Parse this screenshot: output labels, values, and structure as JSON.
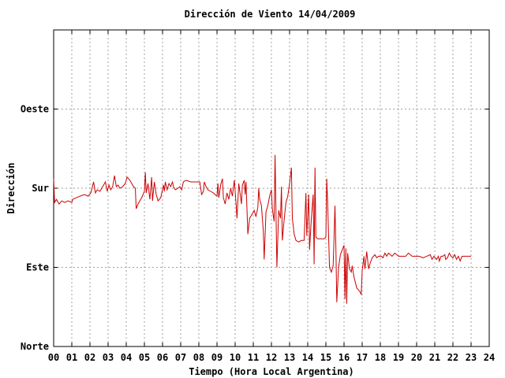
{
  "chart_data": {
    "type": "line",
    "title": "Dirección de Viento 14/04/2009",
    "xlabel": "Tiempo (Hora Local Argentina)",
    "ylabel": "Dirección",
    "xlim": [
      0,
      24
    ],
    "ylim": [
      0,
      4
    ],
    "x_ticks": [
      "00",
      "01",
      "02",
      "03",
      "04",
      "05",
      "06",
      "07",
      "08",
      "09",
      "10",
      "11",
      "12",
      "13",
      "14",
      "15",
      "16",
      "17",
      "18",
      "19",
      "20",
      "21",
      "22",
      "23",
      "24"
    ],
    "y_ticks": [
      {
        "value": 0,
        "label": "Norte"
      },
      {
        "value": 1,
        "label": "Este"
      },
      {
        "value": 2,
        "label": "Sur"
      },
      {
        "value": 3,
        "label": "Oeste"
      }
    ],
    "grid": true,
    "colors": {
      "series": "#cc0000",
      "grid": "#a0a0a0",
      "frame": "#000000"
    },
    "series": [
      {
        "values": [
          [
            0.0,
            2.12
          ],
          [
            0.05,
            1.82
          ],
          [
            0.15,
            1.86
          ],
          [
            0.3,
            1.8
          ],
          [
            0.45,
            1.84
          ],
          [
            0.6,
            1.82
          ],
          [
            0.8,
            1.84
          ],
          [
            1.0,
            1.82
          ],
          [
            1.05,
            1.86
          ],
          [
            1.25,
            1.88
          ],
          [
            1.45,
            1.9
          ],
          [
            1.7,
            1.92
          ],
          [
            1.9,
            1.9
          ],
          [
            2.05,
            1.94
          ],
          [
            2.2,
            2.08
          ],
          [
            2.3,
            1.94
          ],
          [
            2.4,
            1.98
          ],
          [
            2.55,
            1.96
          ],
          [
            2.7,
            2.02
          ],
          [
            2.85,
            2.08
          ],
          [
            2.95,
            1.96
          ],
          [
            3.05,
            2.04
          ],
          [
            3.15,
            1.98
          ],
          [
            3.25,
            2.02
          ],
          [
            3.35,
            2.16
          ],
          [
            3.45,
            2.02
          ],
          [
            3.55,
            2.04
          ],
          [
            3.65,
            2.0
          ],
          [
            3.8,
            2.02
          ],
          [
            3.95,
            2.06
          ],
          [
            4.05,
            2.14
          ],
          [
            4.2,
            2.1
          ],
          [
            4.3,
            2.06
          ],
          [
            4.4,
            2.02
          ],
          [
            4.5,
            2.0
          ],
          [
            4.55,
            1.74
          ],
          [
            4.65,
            1.8
          ],
          [
            4.85,
            1.88
          ],
          [
            5.0,
            1.96
          ],
          [
            5.05,
            2.2
          ],
          [
            5.1,
            1.94
          ],
          [
            5.2,
            2.06
          ],
          [
            5.3,
            1.86
          ],
          [
            5.4,
            2.14
          ],
          [
            5.45,
            1.84
          ],
          [
            5.55,
            2.08
          ],
          [
            5.65,
            1.92
          ],
          [
            5.75,
            1.84
          ],
          [
            5.9,
            1.88
          ],
          [
            6.05,
            2.04
          ],
          [
            6.1,
            1.96
          ],
          [
            6.15,
            2.08
          ],
          [
            6.25,
            1.98
          ],
          [
            6.35,
            2.06
          ],
          [
            6.45,
            2.02
          ],
          [
            6.55,
            2.08
          ],
          [
            6.6,
            2.02
          ],
          [
            6.7,
            1.98
          ],
          [
            6.85,
            2.0
          ],
          [
            6.95,
            2.02
          ],
          [
            7.05,
            1.98
          ],
          [
            7.15,
            2.08
          ],
          [
            7.3,
            2.1
          ],
          [
            7.55,
            2.08
          ],
          [
            7.8,
            2.08
          ],
          [
            8.05,
            2.08
          ],
          [
            8.15,
            1.92
          ],
          [
            8.25,
            1.96
          ],
          [
            8.3,
            2.08
          ],
          [
            8.4,
            2.02
          ],
          [
            8.5,
            1.98
          ],
          [
            8.65,
            1.96
          ],
          [
            8.8,
            1.94
          ],
          [
            9.0,
            1.9
          ],
          [
            9.05,
            2.06
          ],
          [
            9.1,
            1.88
          ],
          [
            9.2,
            2.04
          ],
          [
            9.3,
            2.12
          ],
          [
            9.35,
            1.88
          ],
          [
            9.45,
            1.8
          ],
          [
            9.55,
            1.94
          ],
          [
            9.65,
            1.86
          ],
          [
            9.75,
            2.0
          ],
          [
            9.85,
            1.9
          ],
          [
            9.95,
            2.1
          ],
          [
            10.05,
            1.82
          ],
          [
            10.1,
            1.62
          ],
          [
            10.2,
            2.06
          ],
          [
            10.35,
            1.8
          ],
          [
            10.4,
            2.04
          ],
          [
            10.5,
            2.1
          ],
          [
            10.55,
            1.92
          ],
          [
            10.6,
            2.08
          ],
          [
            10.7,
            1.42
          ],
          [
            10.8,
            1.62
          ],
          [
            10.95,
            1.68
          ],
          [
            11.05,
            1.72
          ],
          [
            11.15,
            1.64
          ],
          [
            11.25,
            1.76
          ],
          [
            11.3,
            2.0
          ],
          [
            11.35,
            1.86
          ],
          [
            11.45,
            1.78
          ],
          [
            11.55,
            1.46
          ],
          [
            11.6,
            1.1
          ],
          [
            11.7,
            1.7
          ],
          [
            11.8,
            1.78
          ],
          [
            11.9,
            1.9
          ],
          [
            12.0,
            1.98
          ],
          [
            12.05,
            1.74
          ],
          [
            12.15,
            1.58
          ],
          [
            12.2,
            2.42
          ],
          [
            12.3,
            1.0
          ],
          [
            12.4,
            1.72
          ],
          [
            12.5,
            1.62
          ],
          [
            12.55,
            2.02
          ],
          [
            12.6,
            1.34
          ],
          [
            12.7,
            1.6
          ],
          [
            12.8,
            1.82
          ],
          [
            12.9,
            1.9
          ],
          [
            13.0,
            2.06
          ],
          [
            13.1,
            2.26
          ],
          [
            13.15,
            1.62
          ],
          [
            13.25,
            1.42
          ],
          [
            13.35,
            1.34
          ],
          [
            13.5,
            1.32
          ],
          [
            13.65,
            1.34
          ],
          [
            13.8,
            1.34
          ],
          [
            13.9,
            1.94
          ],
          [
            13.95,
            1.4
          ],
          [
            14.05,
            1.92
          ],
          [
            14.1,
            1.22
          ],
          [
            14.2,
            1.62
          ],
          [
            14.3,
            1.92
          ],
          [
            14.35,
            1.04
          ],
          [
            14.4,
            2.26
          ],
          [
            14.45,
            1.38
          ],
          [
            14.55,
            1.36
          ],
          [
            14.75,
            1.36
          ],
          [
            14.9,
            1.36
          ],
          [
            15.0,
            1.38
          ],
          [
            15.05,
            2.12
          ],
          [
            15.1,
            1.8
          ],
          [
            15.2,
            1.0
          ],
          [
            15.3,
            0.94
          ],
          [
            15.4,
            1.02
          ],
          [
            15.45,
            1.36
          ],
          [
            15.5,
            1.78
          ],
          [
            15.55,
            1.24
          ],
          [
            15.6,
            0.56
          ],
          [
            15.7,
            1.0
          ],
          [
            15.8,
            1.16
          ],
          [
            15.9,
            1.22
          ],
          [
            16.0,
            1.28
          ],
          [
            16.05,
            0.6
          ],
          [
            16.1,
            1.24
          ],
          [
            16.15,
            0.54
          ],
          [
            16.2,
            1.18
          ],
          [
            16.3,
            0.98
          ],
          [
            16.4,
            0.94
          ],
          [
            16.45,
            1.02
          ],
          [
            16.55,
            0.88
          ],
          [
            16.7,
            0.74
          ],
          [
            16.85,
            0.7
          ],
          [
            16.95,
            0.66
          ],
          [
            17.0,
            0.96
          ],
          [
            17.1,
            1.14
          ],
          [
            17.15,
            0.98
          ],
          [
            17.25,
            1.2
          ],
          [
            17.35,
            0.98
          ],
          [
            17.45,
            1.06
          ],
          [
            17.55,
            1.12
          ],
          [
            17.7,
            1.16
          ],
          [
            17.8,
            1.12
          ],
          [
            17.9,
            1.14
          ],
          [
            18.05,
            1.14
          ],
          [
            18.15,
            1.12
          ],
          [
            18.25,
            1.18
          ],
          [
            18.35,
            1.14
          ],
          [
            18.45,
            1.18
          ],
          [
            18.55,
            1.16
          ],
          [
            18.65,
            1.14
          ],
          [
            18.8,
            1.18
          ],
          [
            19.0,
            1.14
          ],
          [
            19.2,
            1.14
          ],
          [
            19.4,
            1.14
          ],
          [
            19.55,
            1.18
          ],
          [
            19.75,
            1.14
          ],
          [
            19.95,
            1.14
          ],
          [
            20.15,
            1.14
          ],
          [
            20.35,
            1.12
          ],
          [
            20.55,
            1.14
          ],
          [
            20.75,
            1.16
          ],
          [
            20.85,
            1.1
          ],
          [
            20.95,
            1.14
          ],
          [
            21.1,
            1.1
          ],
          [
            21.2,
            1.14
          ],
          [
            21.25,
            1.08
          ],
          [
            21.35,
            1.14
          ],
          [
            21.45,
            1.14
          ],
          [
            21.55,
            1.16
          ],
          [
            21.6,
            1.1
          ],
          [
            21.7,
            1.12
          ],
          [
            21.8,
            1.18
          ],
          [
            21.9,
            1.14
          ],
          [
            22.0,
            1.12
          ],
          [
            22.1,
            1.16
          ],
          [
            22.2,
            1.1
          ],
          [
            22.3,
            1.14
          ],
          [
            22.4,
            1.08
          ],
          [
            22.5,
            1.14
          ],
          [
            22.7,
            1.14
          ],
          [
            22.9,
            1.14
          ],
          [
            23.0,
            1.14
          ]
        ]
      }
    ]
  }
}
